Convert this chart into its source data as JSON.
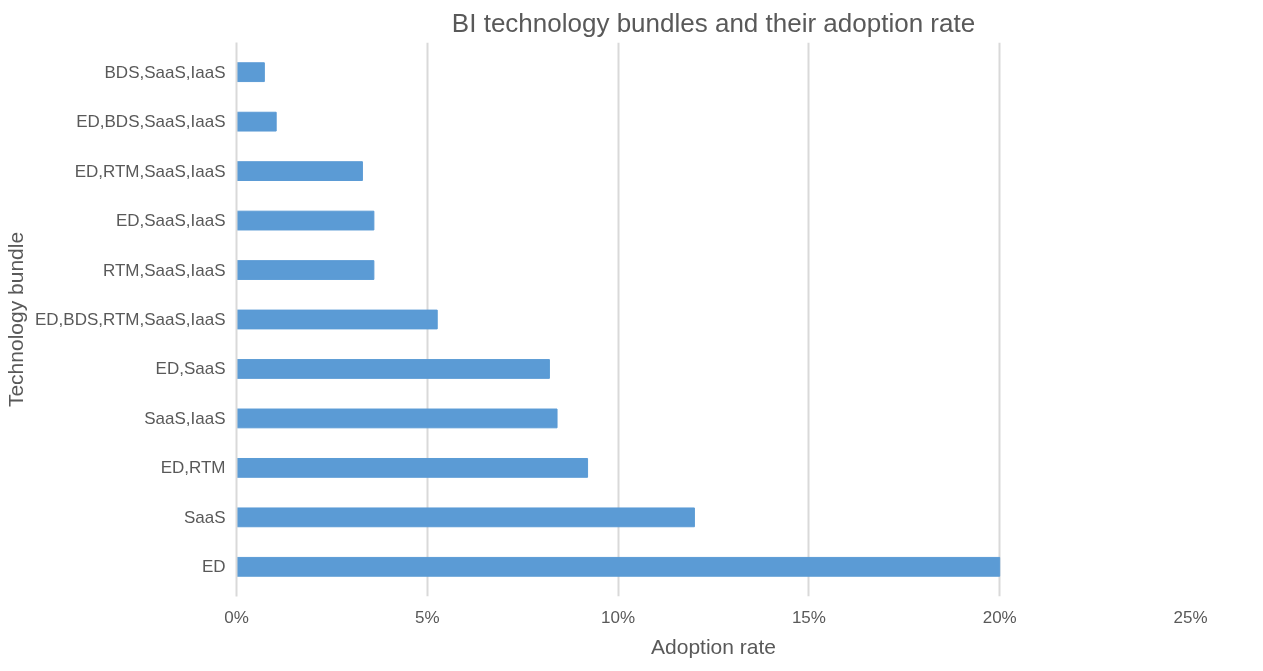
{
  "chart_data": {
    "type": "bar",
    "orientation": "horizontal",
    "title": "BI technology bundles and their adoption rate",
    "xlabel": "Adoption rate",
    "ylabel": "Technology bundle",
    "categories": [
      "BDS,SaaS,IaaS",
      "ED,BDS,SaaS,IaaS",
      "ED,RTM,SaaS,IaaS",
      "ED,SaaS,IaaS",
      "RTM,SaaS,IaaS",
      "ED,BDS,RTM,SaaS,IaaS",
      "ED,SaaS",
      "SaaS,IaaS",
      "ED,RTM",
      "SaaS",
      "ED"
    ],
    "values": [
      0.73,
      1.04,
      3.3,
      3.6,
      3.6,
      5.26,
      8.2,
      8.4,
      9.2,
      12.0,
      20.0
    ],
    "color": "#5b9bd5",
    "xlim": [
      0,
      25
    ],
    "xticks": [
      {
        "value": 0,
        "label": "0%"
      },
      {
        "value": 5,
        "label": "5%"
      },
      {
        "value": 10,
        "label": "10%"
      },
      {
        "value": 15,
        "label": "15%"
      },
      {
        "value": 20,
        "label": "20%"
      },
      {
        "value": 25,
        "label": "25%"
      }
    ],
    "grid": "x"
  }
}
